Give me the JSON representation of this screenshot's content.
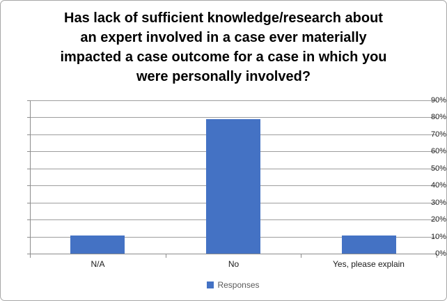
{
  "chart_data": {
    "type": "bar",
    "title": "Has lack of sufficient knowledge/research about an expert involved in a case ever materially impacted a case outcome for a case in which you were personally involved?",
    "title_lines": [
      "Has lack of sufficient knowledge/research about",
      "an expert involved in a case ever materially",
      "impacted a case outcome for a case in which you",
      "were personally involved?"
    ],
    "categories": [
      "N/A",
      "No",
      "Yes, please explain"
    ],
    "series": [
      {
        "name": "Responses",
        "values": [
          10.5,
          78.9,
          10.5
        ]
      }
    ],
    "xlabel": "",
    "ylabel": "",
    "ylim": [
      0,
      90
    ],
    "ytick_step": 10,
    "ytick_suffix": "%",
    "grid": true,
    "legend_position": "bottom",
    "colors": {
      "bar": "#4472c4",
      "gridline": "#9d9d9d",
      "axis": "#8c8c8c",
      "title_text": "#000000",
      "tick_text": "#1a1a1a",
      "legend_text": "#595959",
      "frame_border": "#a6a6a6",
      "background": "#ffffff"
    }
  }
}
